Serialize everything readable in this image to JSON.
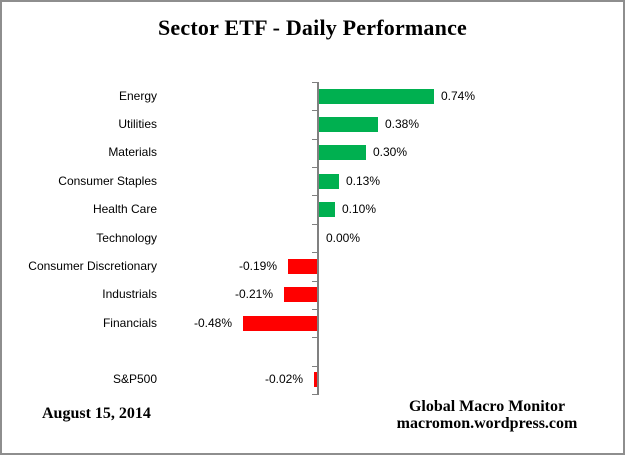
{
  "title": "Sector ETF - Daily Performance",
  "footer": {
    "date": "August 15, 2014",
    "source_name": "Global Macro Monitor",
    "source_url": "macromon.wordpress.com"
  },
  "chart_data": {
    "type": "bar",
    "orientation": "horizontal",
    "title": "Sector ETF - Daily Performance",
    "value_format": "percent",
    "categories": [
      "Energy",
      "Utilities",
      "Materials",
      "Consumer Staples",
      "Health Care",
      "Technology",
      "Consumer Discretionary",
      "Industrials",
      "Financials",
      "S&P500"
    ],
    "values": [
      0.74,
      0.38,
      0.3,
      0.13,
      0.1,
      0.0,
      -0.19,
      -0.21,
      -0.48,
      -0.02
    ],
    "rows": [
      {
        "label": "Energy",
        "value": 0.74,
        "display": "0.74%"
      },
      {
        "label": "Utilities",
        "value": 0.38,
        "display": "0.38%"
      },
      {
        "label": "Materials",
        "value": 0.3,
        "display": "0.30%"
      },
      {
        "label": "Consumer Staples",
        "value": 0.13,
        "display": "0.13%"
      },
      {
        "label": "Health Care",
        "value": 0.1,
        "display": "0.10%"
      },
      {
        "label": "Technology",
        "value": 0.0,
        "display": "0.00%"
      },
      {
        "label": "Consumer Discretionary",
        "value": -0.19,
        "display": "-0.19%"
      },
      {
        "label": "Industrials",
        "value": -0.21,
        "display": "-0.21%"
      },
      {
        "label": "Financials",
        "value": -0.48,
        "display": "-0.48%"
      },
      {
        "label": "",
        "value": null,
        "display": "",
        "spacer": true
      },
      {
        "label": "S&P500",
        "value": -0.02,
        "display": "-0.02%"
      }
    ],
    "colors": {
      "positive": "#00B050",
      "negative": "#FF0000",
      "axis": "#808080"
    },
    "xlim": [
      -1.0,
      2.0
    ],
    "gridlines": false,
    "legend": false,
    "data_labels": true
  }
}
